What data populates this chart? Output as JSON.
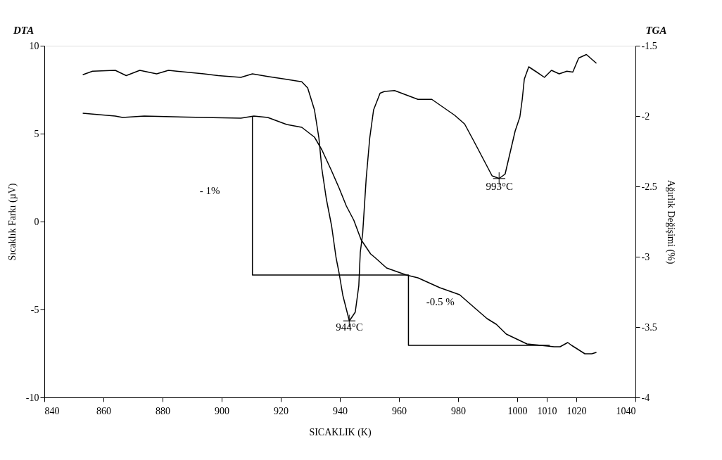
{
  "chart_data": {
    "type": "line",
    "xlabel": "SICAKLIK (K)",
    "ylabel": "Sıcaklık Farkı (µV)",
    "y2label": "Ağırlık Değişimi (%)",
    "xlim": [
      840,
      1040
    ],
    "xticks": [
      840,
      860,
      880,
      900,
      920,
      940,
      960,
      980,
      1000,
      1010,
      1020,
      1040
    ],
    "ylim": [
      -10,
      10
    ],
    "yticks": [
      -10,
      -5,
      0,
      5,
      10
    ],
    "y2lim": [
      -4,
      -1.5
    ],
    "y2ticks": [
      -4,
      -3.5,
      -3,
      -2.5,
      -2,
      -1.5
    ],
    "grid": false,
    "series": [
      {
        "color": "#000000",
        "x": [
          853,
          856.3,
          864,
          867.7,
          872.3,
          878,
          882,
          894,
          898.8,
          906.5,
          910.4,
          915.6,
          921.5,
          927.1,
          929.1,
          931.4,
          932.9,
          933.9,
          935.4,
          937.2,
          938.7,
          939.7,
          941,
          943.2,
          945.2,
          946.4,
          946.9,
          947.7,
          948.9,
          950.1,
          951.4,
          953.6,
          955.1,
          958.5,
          966.4,
          971.1,
          978.8,
          982.2,
          985.4,
          991.5,
          993.9,
          995.9,
          999.3,
          1000.9,
          1001.7,
          1002.4,
          1003.9,
          1006.6,
          1009.2,
          1011.6,
          1014.2,
          1016.8,
          1018.8,
          1020.8,
          1023.4,
          1026.8
        ],
        "values": [
          8.35,
          8.55,
          8.6,
          8.3,
          8.6,
          8.4,
          8.6,
          8.4,
          8.3,
          8.2,
          8.4,
          8.25,
          8.1,
          7.95,
          7.6,
          6.35,
          4.75,
          3.0,
          1.3,
          -0.25,
          -2.05,
          -2.9,
          -4.2,
          -5.65,
          -5.15,
          -3.65,
          -1.75,
          -0.7,
          2.45,
          4.75,
          6.35,
          7.3,
          7.4,
          7.45,
          6.95,
          6.95,
          6.05,
          5.55,
          4.55,
          2.6,
          2.45,
          2.7,
          5.15,
          5.95,
          6.95,
          8.1,
          8.8,
          8.5,
          8.2,
          8.6,
          8.4,
          8.55,
          8.5,
          9.3,
          9.5,
          9.0
        ]
      },
      {
        "axis": "y2",
        "color": "#000000",
        "x": [
          853,
          864,
          866.5,
          873.8,
          894,
          906.5,
          910.9,
          915.6,
          922,
          927.1,
          931.4,
          933.9,
          937.2,
          939.7,
          942.2,
          944.7,
          947.2,
          950.4,
          952.1,
          955.8,
          962.5,
          966.4,
          973.8,
          980.5,
          985.4,
          989.8,
          992.9,
          996.3,
          1000.3,
          1003.3,
          1007.9,
          1012.5,
          1014.5,
          1017.1,
          1018.4,
          1022.9,
          1025.2,
          1026.8
        ],
        "values": [
          -1.98,
          -2.0,
          -2.01,
          -2.0,
          -2.01,
          -2.015,
          -2.0,
          -2.01,
          -2.06,
          -2.08,
          -2.15,
          -2.24,
          -2.39,
          -2.51,
          -2.64,
          -2.74,
          -2.88,
          -2.98,
          -3.01,
          -3.08,
          -3.13,
          -3.15,
          -3.22,
          -3.27,
          -3.36,
          -3.44,
          -3.48,
          -3.55,
          -3.59,
          -3.62,
          -3.63,
          -3.64,
          -3.64,
          -3.61,
          -3.63,
          -3.69,
          -3.69,
          -3.68
        ]
      },
      {
        "axis": "y2",
        "color": "#000000",
        "x": [
          910.4,
          910.4,
          963.2,
          963.2,
          1011
        ],
        "values": [
          -2.0,
          -3.13,
          -3.13,
          -3.63,
          -3.63
        ]
      },
      {
        "type": "scatter",
        "marker": "cross",
        "color": "#000000",
        "x": [
          943.2,
          993.9
        ],
        "values": [
          -5.65,
          2.45
        ]
      }
    ],
    "annotations": [
      "DTA",
      "TGA",
      "944°C",
      "993°C",
      "- 1%",
      "-0.5 %"
    ]
  }
}
